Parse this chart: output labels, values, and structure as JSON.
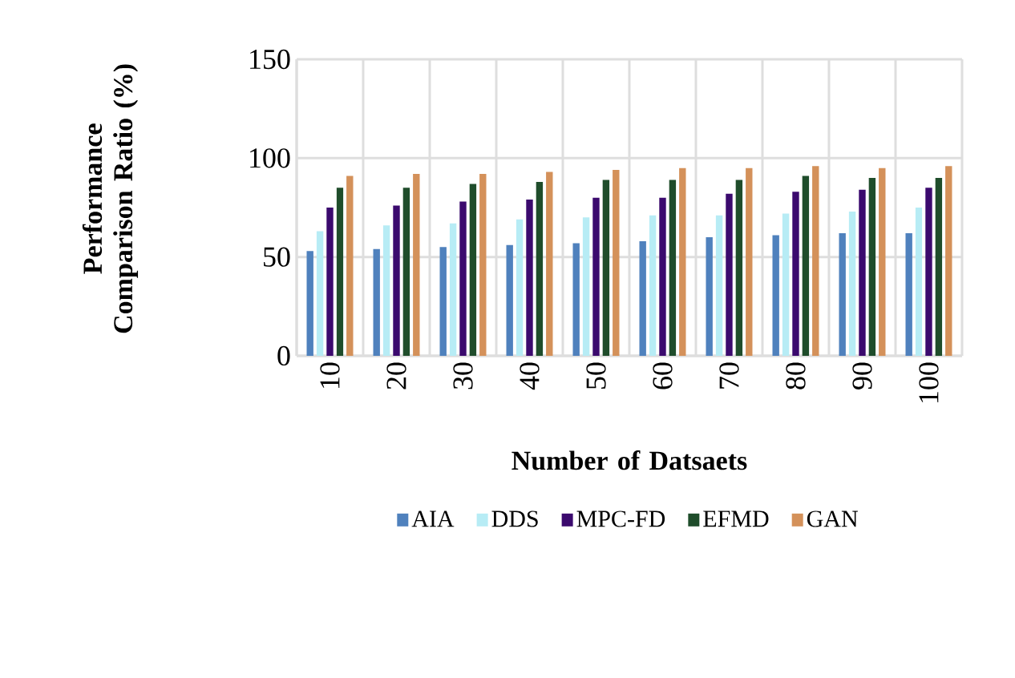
{
  "chart_data": {
    "type": "bar",
    "xlabel": "Number of Datsaets",
    "ylabel": "Performance Comparison Ratio (%)",
    "categories": [
      "10",
      "20",
      "30",
      "40",
      "50",
      "60",
      "70",
      "80",
      "90",
      "100"
    ],
    "series": [
      {
        "name": "AIA",
        "color": "#4f81bd",
        "values": [
          53,
          54,
          55,
          56,
          57,
          58,
          60,
          61,
          62,
          62
        ]
      },
      {
        "name": "DDS",
        "color": "#b7ecf5",
        "values": [
          63,
          66,
          67,
          69,
          70,
          71,
          71,
          72,
          73,
          75
        ]
      },
      {
        "name": "MPC-FD",
        "color": "#3b0a6e",
        "values": [
          75,
          76,
          78,
          79,
          80,
          80,
          82,
          83,
          84,
          85
        ]
      },
      {
        "name": "EFMD",
        "color": "#1f4d2b",
        "values": [
          85,
          85,
          87,
          88,
          89,
          89,
          89,
          91,
          90,
          90
        ]
      },
      {
        "name": "GAN",
        "color": "#d4915a",
        "values": [
          91,
          92,
          92,
          93,
          94,
          95,
          95,
          96,
          95,
          96
        ]
      }
    ],
    "ylim": [
      0,
      150
    ],
    "yticks": [
      0,
      50,
      100,
      150
    ],
    "grid": true,
    "legend": "bottom"
  }
}
